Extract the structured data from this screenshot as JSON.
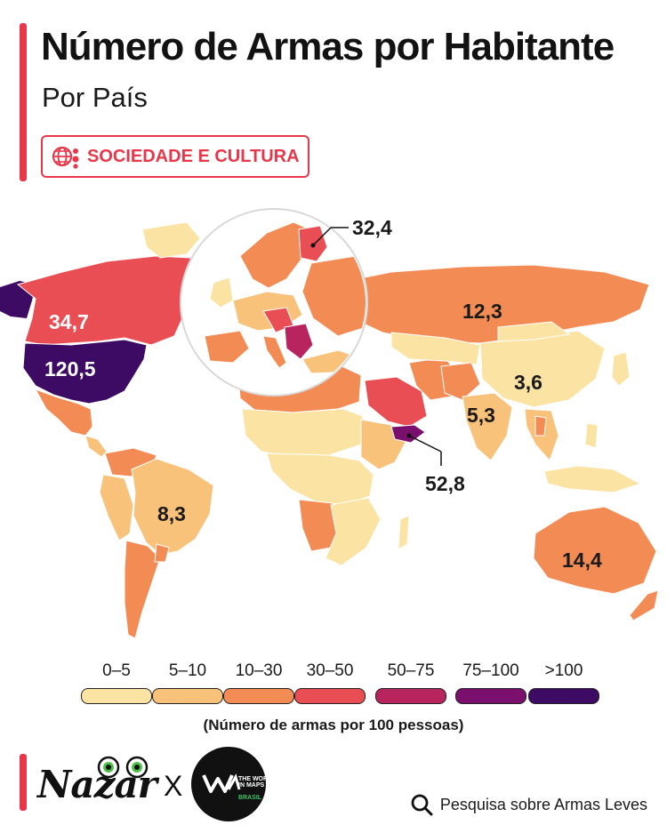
{
  "header": {
    "title": "Número de Armas por Habitante",
    "subtitle": "Por País",
    "category": "SOCIEDADE E CULTURA"
  },
  "map": {
    "labels": {
      "usa": "120,5",
      "canada": "34,7",
      "brazil": "8,3",
      "russia": "12,3",
      "china": "3,6",
      "india": "5,3",
      "yemen": "52,8",
      "finland": "32,4",
      "australia": "14,4"
    },
    "values": {
      "usa": 120.5,
      "canada": 34.7,
      "brazil": 8.3,
      "russia": 12.3,
      "china": 3.6,
      "india": 5.3,
      "yemen": 52.8,
      "finland": 32.4,
      "australia": 14.4
    }
  },
  "legend": {
    "items": [
      {
        "label": "0–5",
        "color": "#fbe3a3"
      },
      {
        "label": "5–10",
        "color": "#f9c27a"
      },
      {
        "label": "10–30",
        "color": "#f38b55"
      },
      {
        "label": "30–50",
        "color": "#ea4e55"
      },
      {
        "label": "50–75",
        "color": "#b8255e"
      },
      {
        "label": "75–100",
        "color": "#7a0f6e"
      },
      {
        "label": ">100",
        "color": "#3d0b63"
      }
    ],
    "caption": "(Número de armas por 100 pessoas)"
  },
  "footer": {
    "brand_left": "Nazar",
    "separator": "X",
    "brand_right_line1": "THE WORLD",
    "brand_right_line2": "IN MAPS",
    "brand_right_line3": "BRASIL",
    "source_icon": "search-icon",
    "source": "Pesquisa sobre Armas Leves"
  }
}
